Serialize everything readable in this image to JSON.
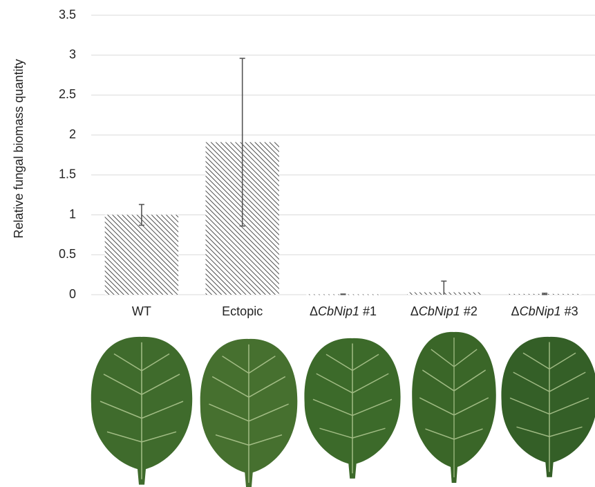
{
  "chart_data": {
    "type": "bar",
    "y_label": "Relative fungal biomass quantity",
    "categories": [
      "WT",
      "Ectopic",
      "ΔCbNip1 #1",
      "ΔCbNip1 #2",
      "ΔCbNip1 #3"
    ],
    "values": [
      1.0,
      1.91,
      0.005,
      0.03,
      0.01
    ],
    "errors": [
      0.13,
      1.05,
      0.003,
      0.14,
      0.008
    ],
    "color": "#3a3a3a",
    "error_color": "#555555",
    "ylim": [
      0,
      3.5
    ],
    "yticks": [
      0,
      0.5,
      1,
      1.5,
      2,
      2.5,
      3,
      3.5
    ],
    "grid": true
  }
}
